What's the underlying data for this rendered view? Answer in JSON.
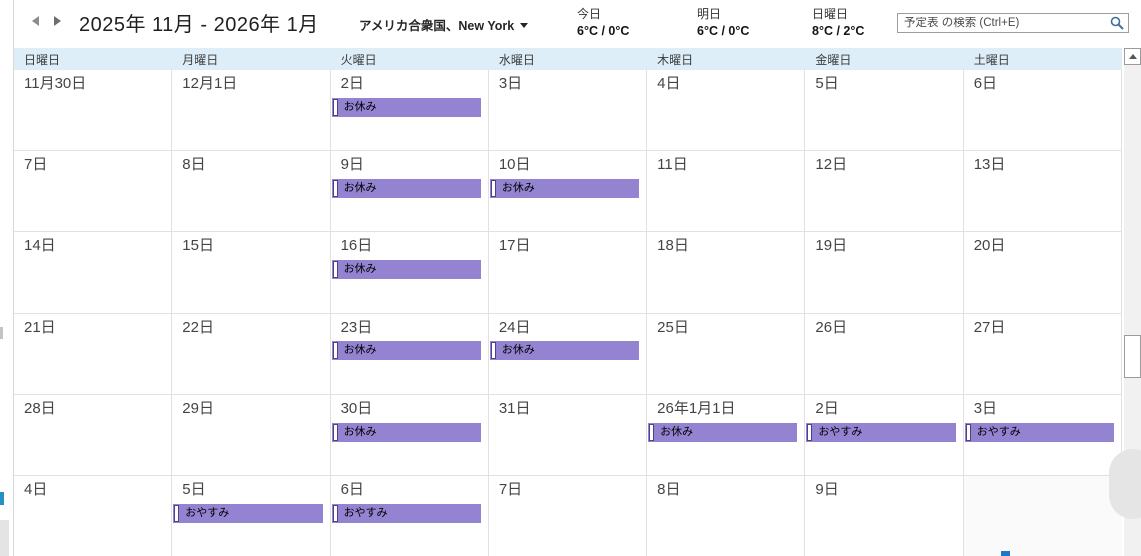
{
  "colors": {
    "event_bg": "#9383d1",
    "event_border": "#514089",
    "weekday_header_bg": "#ddeef9",
    "search_icon": "#3c6e9f"
  },
  "header": {
    "title": "2025年 11月 - 2026年 1月",
    "location": "アメリカ合衆国、New York",
    "weather": [
      {
        "label": "今日",
        "temp": "6°C / 0°C"
      },
      {
        "label": "明日",
        "temp": "6°C / 0°C"
      },
      {
        "label": "日曜日",
        "temp": "8°C / 2°C"
      }
    ],
    "search_placeholder": "予定表 の検索 (Ctrl+E)"
  },
  "weekdays": [
    "日曜日",
    "月曜日",
    "火曜日",
    "水曜日",
    "木曜日",
    "金曜日",
    "土曜日"
  ],
  "weeks": [
    {
      "days": [
        {
          "date": "11月30日"
        },
        {
          "date": "12月1日"
        },
        {
          "date": "2日",
          "event": "お休み"
        },
        {
          "date": "3日"
        },
        {
          "date": "4日"
        },
        {
          "date": "5日"
        },
        {
          "date": "6日"
        }
      ]
    },
    {
      "days": [
        {
          "date": "7日"
        },
        {
          "date": "8日"
        },
        {
          "date": "9日",
          "event": "お休み"
        },
        {
          "date": "10日",
          "event": "お休み"
        },
        {
          "date": "11日"
        },
        {
          "date": "12日"
        },
        {
          "date": "13日"
        }
      ]
    },
    {
      "days": [
        {
          "date": "14日"
        },
        {
          "date": "15日"
        },
        {
          "date": "16日",
          "event": "お休み"
        },
        {
          "date": "17日"
        },
        {
          "date": "18日"
        },
        {
          "date": "19日"
        },
        {
          "date": "20日"
        }
      ]
    },
    {
      "days": [
        {
          "date": "21日"
        },
        {
          "date": "22日"
        },
        {
          "date": "23日",
          "event": "お休み"
        },
        {
          "date": "24日",
          "event": "お休み"
        },
        {
          "date": "25日"
        },
        {
          "date": "26日"
        },
        {
          "date": "27日"
        }
      ]
    },
    {
      "days": [
        {
          "date": "28日"
        },
        {
          "date": "29日"
        },
        {
          "date": "30日",
          "event": "お休み"
        },
        {
          "date": "31日"
        },
        {
          "date": "26年1月1日",
          "event": "お休み"
        },
        {
          "date": "2日",
          "event": "おやすみ"
        },
        {
          "date": "3日",
          "event": "おやすみ"
        }
      ]
    },
    {
      "days": [
        {
          "date": "4日"
        },
        {
          "date": "5日",
          "event": "おやすみ"
        },
        {
          "date": "6日",
          "event": "おやすみ"
        },
        {
          "date": "7日"
        },
        {
          "date": "8日"
        },
        {
          "date": "9日"
        },
        {
          "date": "",
          "out_of_range": true
        }
      ]
    }
  ]
}
